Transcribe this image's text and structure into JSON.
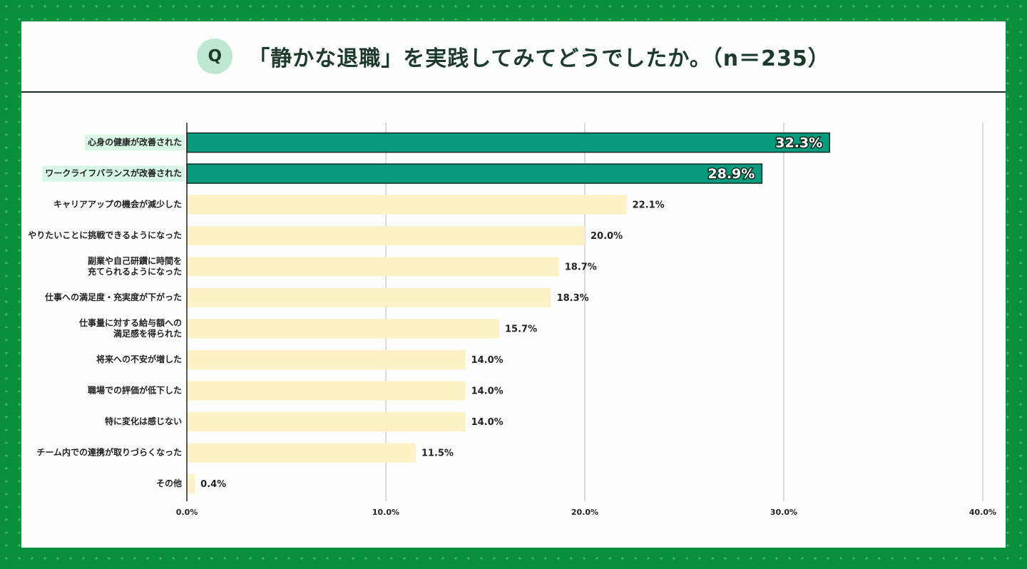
{
  "header": {
    "badge": "Q",
    "title": "「静かな退職」を実践してみてどうでしたか。（n＝235）"
  },
  "colors": {
    "frame": "#0a8f3c",
    "highlight_bar": "#079a7d",
    "highlight_label_bg": "#d7f6e3",
    "normal_bar": "#fdf1c6",
    "grid": "#cfcfcf"
  },
  "chart_data": {
    "type": "bar",
    "orientation": "horizontal",
    "categories": [
      "心身の健康が改善された",
      "ワークライフバランスが改善された",
      "キャリアアップの機会が減少した",
      "やりたいことに挑戦できるようになった",
      "副業や自己研鑽に時間を\n充てられるようになった",
      "仕事への満足度・充実度が下がった",
      "仕事量に対する給与額への\n満足感を得られた",
      "将来への不安が増した",
      "職場での評価が低下した",
      "特に変化は感じない",
      "チーム内での連携が取りづらくなった",
      "その他"
    ],
    "values": [
      32.3,
      28.9,
      22.1,
      20.0,
      18.7,
      18.3,
      15.7,
      14.0,
      14.0,
      14.0,
      11.5,
      0.4
    ],
    "value_labels": [
      "32.3%",
      "28.9%",
      "22.1%",
      "20.0%",
      "18.7%",
      "18.3%",
      "15.7%",
      "14.0%",
      "14.0%",
      "14.0%",
      "11.5%",
      "0.4%"
    ],
    "highlighted": [
      true,
      true,
      false,
      false,
      false,
      false,
      false,
      false,
      false,
      false,
      false,
      false
    ],
    "xlim": [
      0,
      40
    ],
    "xticks": [
      "0.0%",
      "10.0%",
      "20.0%",
      "30.0%",
      "40.0%"
    ],
    "grid": true
  }
}
